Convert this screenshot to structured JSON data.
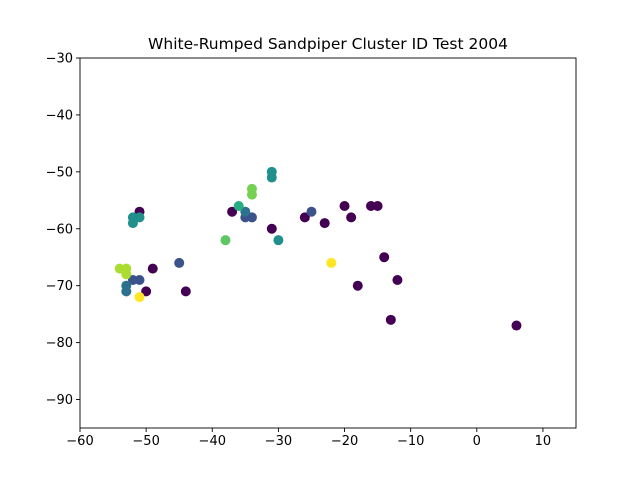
{
  "chart_data": {
    "type": "scatter",
    "title": "White-Rumped Sandpiper Cluster ID Test 2004",
    "xlabel": "",
    "ylabel": "",
    "xlim": [
      -60,
      15
    ],
    "ylim": [
      -95,
      -30
    ],
    "x_ticks": [
      "−60",
      "−50",
      "−40",
      "−30",
      "−20",
      "−10",
      "0",
      "10"
    ],
    "x_tick_values": [
      -60,
      -50,
      -40,
      -30,
      -20,
      -10,
      0,
      10
    ],
    "y_ticks": [
      "−90",
      "−80",
      "−70",
      "−60",
      "−50",
      "−40",
      "−30"
    ],
    "y_tick_values": [
      -90,
      -80,
      -70,
      -60,
      -50,
      -40,
      -30
    ],
    "grid": false,
    "colormap": "viridis",
    "cluster_colors": {
      "0": "#440154",
      "1": "#3b528b",
      "2": "#2c728e",
      "3": "#21908d",
      "4": "#27ad81",
      "5": "#5dc863",
      "6": "#75d054",
      "7": "#aadc32",
      "8": "#fde725"
    },
    "points": [
      {
        "x": 6,
        "y": -77,
        "cluster": 0
      },
      {
        "x": -13,
        "y": -76,
        "cluster": 0
      },
      {
        "x": -18,
        "y": -70,
        "cluster": 0
      },
      {
        "x": -12,
        "y": -69,
        "cluster": 0
      },
      {
        "x": -14,
        "y": -65,
        "cluster": 0
      },
      {
        "x": -16,
        "y": -56,
        "cluster": 0
      },
      {
        "x": -15,
        "y": -56,
        "cluster": 0
      },
      {
        "x": -20,
        "y": -56,
        "cluster": 0
      },
      {
        "x": -19,
        "y": -58,
        "cluster": 0
      },
      {
        "x": -23,
        "y": -59,
        "cluster": 0
      },
      {
        "x": -26,
        "y": -58,
        "cluster": 0
      },
      {
        "x": -31,
        "y": -60,
        "cluster": 0
      },
      {
        "x": -37,
        "y": -57,
        "cluster": 0
      },
      {
        "x": -44,
        "y": -71,
        "cluster": 0
      },
      {
        "x": -49,
        "y": -67,
        "cluster": 0
      },
      {
        "x": -50,
        "y": -71,
        "cluster": 0
      },
      {
        "x": -51,
        "y": -57,
        "cluster": 0
      },
      {
        "x": -25,
        "y": -57,
        "cluster": 1
      },
      {
        "x": -34,
        "y": -58,
        "cluster": 1
      },
      {
        "x": -35,
        "y": -58,
        "cluster": 1
      },
      {
        "x": -45,
        "y": -66,
        "cluster": 1
      },
      {
        "x": -51,
        "y": -69,
        "cluster": 1
      },
      {
        "x": -52,
        "y": -69,
        "cluster": 1
      },
      {
        "x": -53,
        "y": -70,
        "cluster": 2
      },
      {
        "x": -53,
        "y": -71,
        "cluster": 2
      },
      {
        "x": -35,
        "y": -57,
        "cluster": 2
      },
      {
        "x": -31,
        "y": -50,
        "cluster": 3
      },
      {
        "x": -31,
        "y": -51,
        "cluster": 3
      },
      {
        "x": -30,
        "y": -62,
        "cluster": 3
      },
      {
        "x": -52,
        "y": -58,
        "cluster": 3
      },
      {
        "x": -51,
        "y": -58,
        "cluster": 3
      },
      {
        "x": -52,
        "y": -59,
        "cluster": 3
      },
      {
        "x": -36,
        "y": -56,
        "cluster": 4
      },
      {
        "x": -38,
        "y": -62,
        "cluster": 5
      },
      {
        "x": -34,
        "y": -53,
        "cluster": 6
      },
      {
        "x": -34,
        "y": -54,
        "cluster": 6
      },
      {
        "x": -54,
        "y": -67,
        "cluster": 7
      },
      {
        "x": -53,
        "y": -67,
        "cluster": 7
      },
      {
        "x": -53,
        "y": -68,
        "cluster": 7
      },
      {
        "x": -22,
        "y": -66,
        "cluster": 8
      },
      {
        "x": -51,
        "y": -72,
        "cluster": 8
      }
    ]
  }
}
